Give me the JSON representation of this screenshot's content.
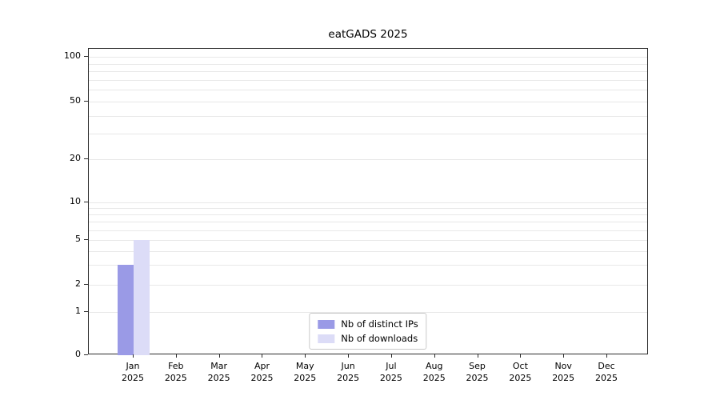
{
  "chart_data": {
    "type": "bar",
    "title": "eatGADS 2025",
    "xlabel": "",
    "ylabel": "",
    "yscale": "log",
    "ylim": [
      0,
      100
    ],
    "yticks": [
      0,
      1,
      2,
      5,
      10,
      20,
      50,
      100
    ],
    "minor_gridlines": [
      3,
      4,
      6,
      7,
      8,
      9,
      30,
      40,
      60,
      70,
      80,
      90
    ],
    "categories": [
      "Jan 2025",
      "Feb 2025",
      "Mar 2025",
      "Apr 2025",
      "May 2025",
      "Jun 2025",
      "Jul 2025",
      "Aug 2025",
      "Sep 2025",
      "Oct 2025",
      "Nov 2025",
      "Dec 2025"
    ],
    "series": [
      {
        "name": "Nb of distinct IPs",
        "color": "#9a9ae6",
        "values": [
          3,
          0,
          0,
          0,
          0,
          0,
          0,
          0,
          0,
          0,
          0,
          0
        ]
      },
      {
        "name": "Nb of downloads",
        "color": "#dcdcf7",
        "values": [
          5,
          0,
          0,
          0,
          0,
          0,
          0,
          0,
          0,
          0,
          0,
          0
        ]
      }
    ],
    "legend_position": "lower center",
    "grid": "on"
  }
}
